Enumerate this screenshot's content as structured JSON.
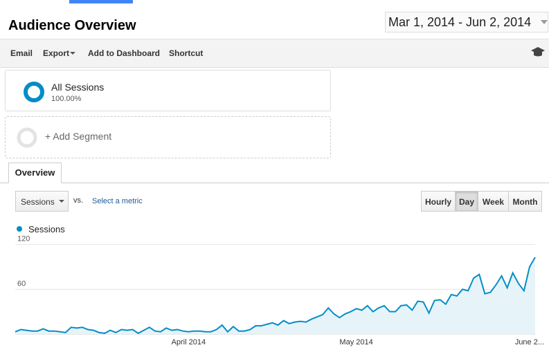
{
  "header": {
    "title": "Audience Overview",
    "date_range": "Mar 1, 2014 - Jun 2, 2014"
  },
  "toolbar": {
    "items": [
      "Email",
      "Export",
      "Add to Dashboard",
      "Shortcut"
    ]
  },
  "segments": {
    "items": [
      {
        "name": "All Sessions",
        "percent": "100.00%"
      }
    ],
    "add": "+ Add Segment"
  },
  "tabs": [
    "Overview"
  ],
  "controls": {
    "metric": "Sessions",
    "vs": "vs.",
    "select_metric": "Select a metric",
    "periods": [
      "Hourly",
      "Day",
      "Week",
      "Month"
    ],
    "active_period": "Day"
  },
  "chart_data": {
    "type": "line",
    "categories": [
      null,
      null,
      null,
      null,
      null,
      null,
      null,
      null,
      null,
      null,
      null,
      null,
      null,
      null,
      null,
      null,
      null,
      null,
      null,
      null,
      null,
      null,
      null,
      null,
      null,
      null,
      null,
      null,
      null,
      null,
      null,
      "April 2014",
      null,
      null,
      null,
      null,
      null,
      null,
      null,
      null,
      null,
      null,
      null,
      null,
      null,
      null,
      null,
      null,
      null,
      null,
      null,
      null,
      null,
      null,
      null,
      null,
      null,
      null,
      null,
      null,
      null,
      "May 2014",
      null,
      null,
      null,
      null,
      null,
      null,
      null,
      null,
      null,
      null,
      null,
      null,
      null,
      null,
      null,
      null,
      null,
      null,
      null,
      null,
      null,
      null,
      null,
      null,
      null,
      null,
      null,
      null,
      null,
      null,
      "June 2...",
      " "
    ],
    "series": [
      {
        "name": "Sessions",
        "color": "#058dc7",
        "values": [
          3,
          6,
          5,
          4,
          4,
          7,
          4,
          4,
          3,
          2,
          9,
          8,
          9,
          6,
          5,
          2,
          1,
          5,
          2,
          6,
          5,
          6,
          1,
          5,
          9,
          4,
          3,
          8,
          5,
          6,
          4,
          3,
          4,
          4,
          3,
          3,
          6,
          12,
          3,
          10,
          4,
          4,
          6,
          11,
          11,
          13,
          15,
          12,
          18,
          14,
          16,
          17,
          16,
          20,
          23,
          26,
          35,
          27,
          22,
          27,
          30,
          34,
          32,
          38,
          30,
          35,
          38,
          30,
          30,
          38,
          39,
          32,
          44,
          43,
          28,
          45,
          46,
          40,
          53,
          51,
          60,
          58,
          75,
          80,
          54,
          56,
          66,
          78,
          62,
          82,
          68,
          58,
          90,
          103
        ]
      }
    ],
    "ylim": [
      0,
      128
    ],
    "yticks": [
      60,
      120
    ],
    "grid": true
  }
}
